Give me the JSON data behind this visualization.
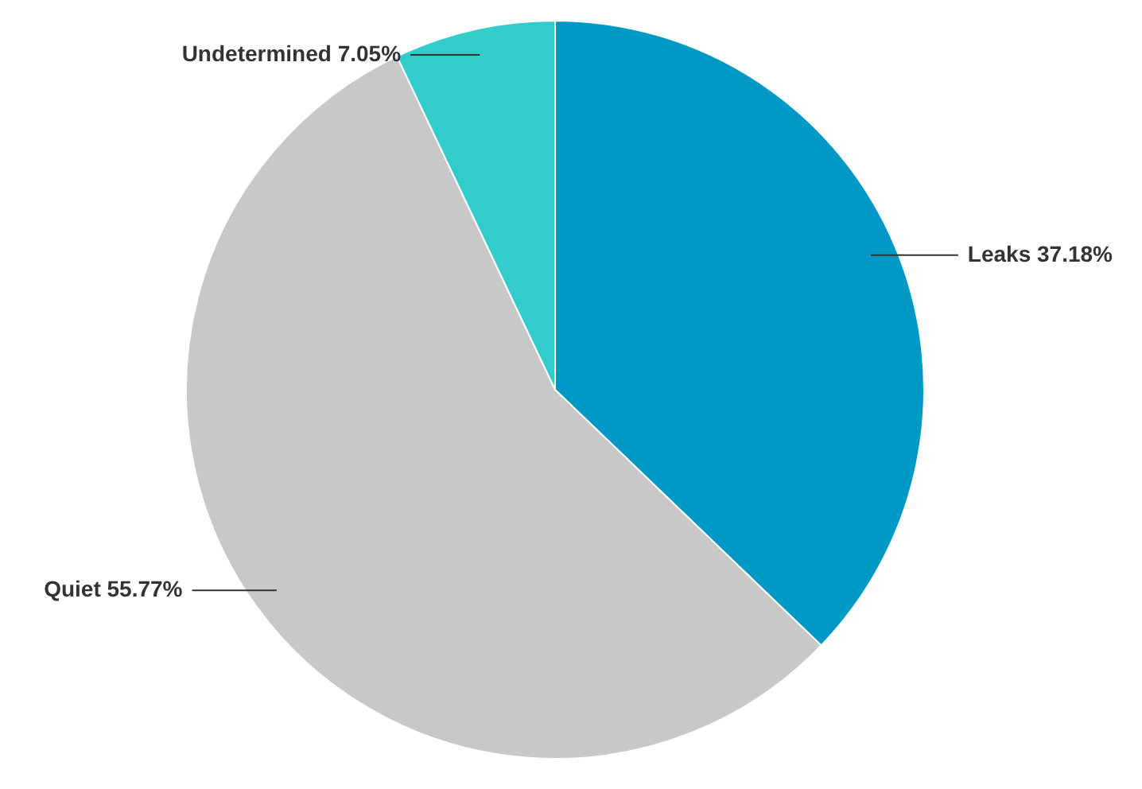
{
  "chart_data": {
    "type": "pie",
    "categories": [
      "Leaks",
      "Quiet",
      "Undetermined"
    ],
    "values": [
      37.18,
      55.77,
      7.05
    ],
    "value_labels": [
      "37.18%",
      "55.77%",
      "7.05%"
    ],
    "colors": [
      "#0099c6",
      "#c8c8c8",
      "#33cccc"
    ]
  }
}
